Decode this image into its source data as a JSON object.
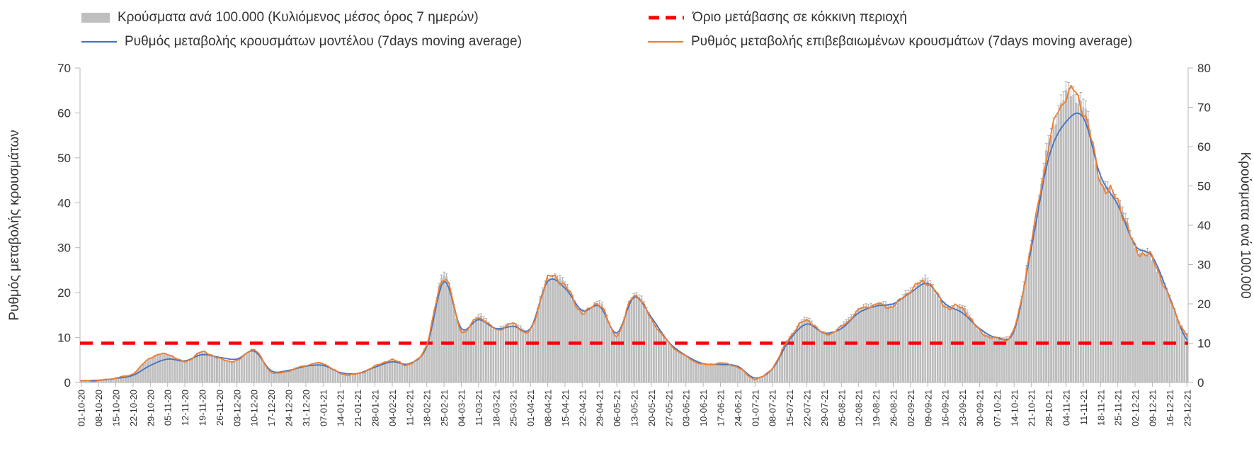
{
  "legend": {
    "bars": "Κρούσματα ανά 100.000 (Κυλιόμενος μέσος όρος 7 ημερών)",
    "threshold": "Όριο μετάβασης σε κόκκινη περιοχή",
    "model": "Ρυθμός μεταβολής κρουσμάτων μοντέλου (7days moving average)",
    "confirmed": "Ρυθμός μεταβολής επιβεβαιωμένων κρουσμάτων (7days moving average)"
  },
  "axes": {
    "left_title": "Ρυθμός μεταβολής κρουσμάτων",
    "right_title": "Κρούσματα ανά 100.000",
    "left_ticks": [
      0,
      10,
      20,
      30,
      40,
      50,
      60,
      70
    ],
    "right_ticks": [
      0,
      10,
      20,
      30,
      40,
      50,
      60,
      70,
      80
    ]
  },
  "colors": {
    "bars": "#bfbfbf",
    "bar_edge": "#ababab",
    "whisker": "#9e9e9e",
    "model": "#4472c4",
    "confirmed": "#ed7d31",
    "threshold": "#ff0000",
    "axis": "#b7b7b7",
    "text": "#333333"
  },
  "chart_data": {
    "type": "bar",
    "title": "",
    "xlabel": "",
    "ylabel_left": "Ρυθμός μεταβολής κρουσμάτων",
    "ylabel_right": "Κρούσματα ανά 100.000",
    "ylim_left": [
      0,
      70
    ],
    "ylim_right": [
      0,
      80
    ],
    "grid": false,
    "legend_position": "top",
    "x": [
      "01-10-20",
      "08-10-20",
      "15-10-20",
      "22-10-20",
      "29-10-20",
      "05-11-20",
      "12-11-20",
      "19-11-20",
      "26-11-20",
      "03-12-20",
      "10-12-20",
      "17-12-20",
      "24-12-20",
      "31-12-20",
      "07-01-21",
      "14-01-21",
      "21-01-21",
      "28-01-21",
      "04-02-21",
      "11-02-21",
      "18-02-21",
      "25-02-21",
      "04-03-21",
      "11-03-21",
      "18-03-21",
      "25-03-21",
      "01-04-21",
      "08-04-21",
      "15-04-21",
      "22-04-21",
      "29-04-21",
      "06-05-21",
      "13-05-21",
      "20-05-21",
      "27-05-21",
      "03-06-21",
      "10-06-21",
      "17-06-21",
      "24-06-21",
      "01-07-21",
      "08-07-21",
      "15-07-21",
      "22-07-21",
      "29-07-21",
      "05-08-21",
      "12-08-21",
      "19-08-21",
      "26-08-21",
      "02-09-21",
      "09-09-21",
      "16-09-21",
      "23-09-21",
      "30-09-21",
      "07-10-21",
      "14-10-21",
      "21-10-21",
      "28-10-21",
      "04-11-21",
      "11-11-21",
      "18-11-21",
      "25-11-21",
      "02-12-21",
      "09-12-21",
      "16-12-21",
      "23-12-21"
    ],
    "series": [
      {
        "name": "Κρούσματα ανά 100.000 (Κυλιόμενος μέσος όρος 7 ημερών)",
        "type": "bar",
        "axis": "right",
        "values": [
          0.4,
          0.5,
          1.1,
          2.3,
          6.3,
          7.2,
          5.3,
          7.8,
          6.1,
          5.5,
          8.3,
          2.6,
          3.0,
          4.3,
          4.8,
          2.3,
          2.2,
          4.1,
          5.7,
          4.6,
          9.7,
          26.9,
          13.1,
          16.6,
          13.5,
          14.9,
          13.1,
          26.3,
          24.6,
          17.7,
          20.0,
          12.0,
          22.3,
          16.0,
          10.1,
          6.6,
          4.6,
          4.9,
          3.9,
          0.9,
          3.7,
          11.4,
          15.8,
          12.3,
          14.1,
          18.3,
          19.8,
          19.4,
          23.4,
          25.5,
          19.4,
          18.9,
          13.1,
          11.2,
          13.5,
          35.4,
          60.0,
          73.0,
          69.7,
          51.4,
          46.3,
          34.3,
          31.4,
          21.1,
          12.0
        ]
      },
      {
        "name": "Ρυθμός μεταβολής κρουσμάτων μοντέλου (7days moving average)",
        "type": "line",
        "axis": "left",
        "values": [
          0.4,
          0.5,
          0.9,
          1.6,
          3.8,
          5.2,
          4.8,
          6.2,
          5.6,
          5.2,
          7.0,
          2.6,
          2.7,
          3.6,
          3.8,
          2.2,
          2.0,
          3.4,
          4.6,
          4.2,
          8.0,
          22.5,
          12.0,
          14.0,
          12.0,
          12.5,
          12.0,
          22.5,
          21.0,
          16.0,
          17.0,
          11.0,
          19.0,
          14.5,
          9.0,
          6.0,
          4.2,
          4.0,
          3.6,
          1.0,
          3.0,
          9.5,
          13.0,
          11.0,
          12.0,
          15.5,
          17.0,
          17.5,
          20.0,
          22.0,
          17.5,
          15.5,
          12.0,
          10.0,
          11.5,
          30.0,
          50.0,
          58.0,
          59.0,
          46.0,
          39.5,
          30.5,
          28.0,
          19.0,
          9.5
        ]
      },
      {
        "name": "Ρυθμός μεταβολής επιβεβαιωμένων κρουσμάτων (7days moving average)",
        "type": "line",
        "axis": "left",
        "values": [
          0.3,
          0.4,
          1.0,
          2.0,
          5.5,
          6.3,
          4.6,
          6.8,
          5.3,
          4.8,
          7.3,
          2.3,
          2.6,
          3.8,
          4.2,
          2.0,
          1.9,
          3.6,
          5.0,
          4.0,
          8.5,
          23.5,
          11.5,
          14.5,
          11.8,
          13.0,
          11.5,
          23.0,
          21.5,
          15.5,
          17.5,
          10.5,
          19.5,
          14.0,
          8.8,
          5.8,
          4.0,
          4.3,
          3.4,
          0.8,
          3.2,
          10.0,
          13.8,
          10.8,
          12.3,
          16.0,
          17.3,
          17.0,
          20.5,
          22.3,
          17.0,
          16.5,
          11.5,
          9.8,
          11.8,
          31.0,
          52.5,
          64.0,
          61.0,
          45.0,
          40.5,
          30.0,
          27.5,
          18.5,
          10.5
        ]
      }
    ],
    "threshold": {
      "name": "Όριο μετάβασης σε κόκκινη περιοχή",
      "axis": "right",
      "value": 10
    }
  }
}
